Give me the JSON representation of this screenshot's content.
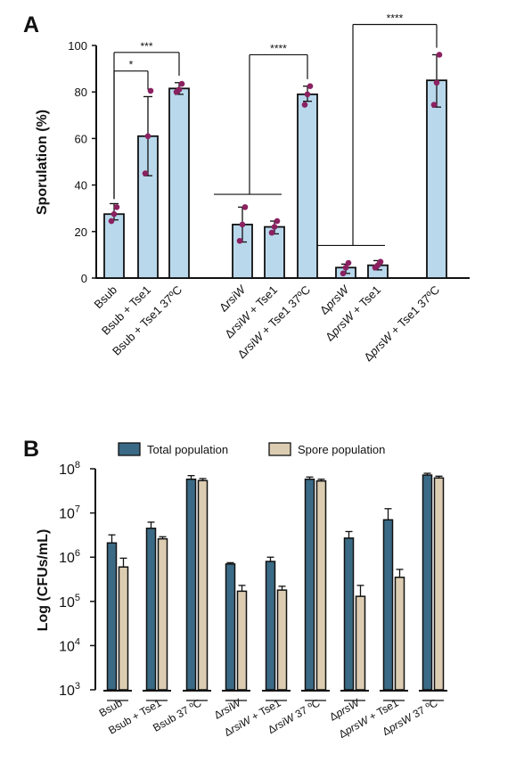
{
  "chart_data": [
    {
      "type": "bar",
      "panel_label": "A",
      "ylabel": "Sporulation (%)",
      "ylim": [
        0,
        100
      ],
      "yticks": [
        0,
        20,
        40,
        60,
        80,
        100
      ],
      "bar_color": "#b9d8ec",
      "edge_color": "#111111",
      "point_color": "#8b2160",
      "grid": false,
      "categories": [
        [
          "Bsub"
        ],
        [
          "Bsub + Tse1"
        ],
        [
          "Bsub + Tse1 37ºC"
        ],
        [
          "Δ",
          {
            "i": "rsiW"
          }
        ],
        [
          "Δ",
          {
            "i": "rsiW"
          },
          " + Tse1"
        ],
        [
          "Δ",
          {
            "i": "rsiW"
          },
          " + Tse1 37ºC"
        ],
        [
          "Δ",
          {
            "i": "prsW"
          }
        ],
        [
          "Δ",
          {
            "i": "prsW"
          },
          " + Tse1"
        ],
        [
          "Δ",
          {
            "i": "prsW"
          },
          " + Tse1 37ºC"
        ]
      ],
      "values": [
        27.5,
        61,
        81.5,
        23,
        22,
        79,
        4.5,
        5.5,
        85
      ],
      "errors": [
        [
          25,
          32
        ],
        [
          44,
          78
        ],
        [
          79,
          84
        ],
        [
          15.5,
          30.5
        ],
        [
          19,
          24.5
        ],
        [
          76,
          82.5
        ],
        [
          2,
          6
        ],
        [
          3.5,
          7.5
        ],
        [
          73.5,
          96
        ]
      ],
      "points": [
        [
          24.5,
          27.5,
          30.5
        ],
        [
          45,
          61,
          80.5
        ],
        [
          80,
          81,
          83.5
        ],
        [
          16,
          23,
          30.5
        ],
        [
          19.5,
          22,
          24.5
        ],
        [
          74.5,
          79,
          82.5
        ],
        [
          2,
          4.5,
          6.5
        ],
        [
          4.5,
          5.5,
          7
        ],
        [
          74.5,
          84,
          96
        ]
      ],
      "significance": [
        {
          "label": "*",
          "from": [
            0
          ],
          "to": 1,
          "level": 89
        },
        {
          "label": "***",
          "from": [
            0
          ],
          "to": 2,
          "level": 97
        },
        {
          "label": "****",
          "from": [
            3,
            4
          ],
          "to": 5,
          "level": 96
        },
        {
          "label": "****",
          "from": [
            6,
            7
          ],
          "to": 8,
          "level": 109
        }
      ]
    },
    {
      "type": "bar",
      "panel_label": "B",
      "ylabel": "Log (CFUs/mL)",
      "yscale": "log",
      "ylim": [
        1000,
        100000000
      ],
      "yticks": [
        1000,
        10000,
        100000,
        1000000,
        10000000,
        100000000
      ],
      "ytick_labels": [
        [
          "10",
          "3"
        ],
        [
          "10",
          "4"
        ],
        [
          "10",
          "5"
        ],
        [
          "10",
          "6"
        ],
        [
          "10",
          "7"
        ],
        [
          "10",
          "8"
        ]
      ],
      "legend_position": "top",
      "categories": [
        [
          "Bsub"
        ],
        [
          "Bsub + Tse1"
        ],
        [
          "Bsub 37 ºC"
        ],
        [
          "Δ",
          {
            "i": "rsiW"
          }
        ],
        [
          "Δ",
          {
            "i": "rsiW"
          },
          " + Tse1"
        ],
        [
          "Δ",
          {
            "i": "rsiW"
          },
          " 37 ºC"
        ],
        [
          "Δ",
          {
            "i": "prsW"
          }
        ],
        [
          "Δ",
          {
            "i": "prsW"
          },
          " + Tse1"
        ],
        [
          "Δ",
          {
            "i": "prsW"
          },
          " 37 ºC"
        ]
      ],
      "series": [
        {
          "name": "Total population",
          "color": "#3a6a85",
          "values": [
            2100000,
            4500000,
            58000000,
            700000,
            800000,
            58000000,
            2700000,
            7000000,
            72000000
          ],
          "error_upper": [
            3200000,
            6200000,
            70000000,
            750000,
            1000000,
            65000000,
            3800000,
            12500000,
            79000000
          ]
        },
        {
          "name": "Spore population",
          "color": "#dccdb2",
          "values": [
            600000,
            2600000,
            54000000,
            170000,
            180000,
            53000000,
            130000,
            350000,
            62000000
          ],
          "error_upper": [
            950000,
            2900000,
            60000000,
            230000,
            220000,
            58000000,
            230000,
            530000,
            68000000
          ]
        }
      ]
    }
  ]
}
